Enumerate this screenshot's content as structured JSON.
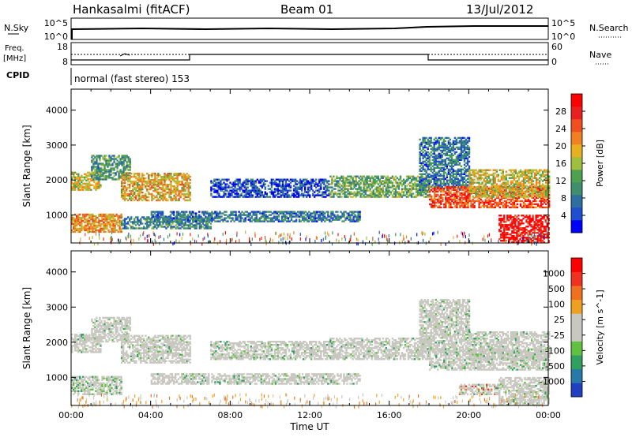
{
  "header": {
    "station": "Hankasalmi (fitACF)",
    "beam": "Beam 01",
    "date": "13/Jul/2012"
  },
  "top_panels": {
    "nsky_label": "N.Sky",
    "nsky_ticks": [
      "10^5",
      "10^0"
    ],
    "nsearch_label": "N.Search",
    "nsearch_ticks": [
      "10^5",
      "10^0"
    ],
    "freq_label": "Freq.",
    "freq_unit": "[MHz]",
    "freq_ticks": [
      "18",
      "8"
    ],
    "nave_label": "Nave",
    "nave_ticks": [
      "60",
      "0"
    ],
    "cpid_label": "CPID",
    "cpid_text": "normal (fast stereo) 153"
  },
  "chart_data": [
    {
      "type": "heatmap",
      "name": "power",
      "ylabel": "Slant Range [km]",
      "xlabel": "",
      "yticks": [
        1000,
        2000,
        3000,
        4000
      ],
      "ylim": [
        200,
        4600
      ],
      "xlim": [
        0,
        24
      ],
      "colorbar": {
        "label": "Power [dB]",
        "ticks": [
          "28",
          "24",
          "20",
          "16",
          "12",
          "8",
          "4"
        ],
        "colors": [
          "#0000ff",
          "#1f4fcf",
          "#2f6f9f",
          "#3f8f6f",
          "#4fa04f",
          "#9fbf3f",
          "#e8b020",
          "#f08020",
          "#f05020",
          "#e82020",
          "#ff0000"
        ]
      },
      "regions": [
        {
          "t0": 0.0,
          "t1": 1.5,
          "r0": 1700,
          "r1": 2200,
          "level": 0.55
        },
        {
          "t0": 1.0,
          "t1": 3.0,
          "r0": 2000,
          "r1": 2700,
          "level": 0.35
        },
        {
          "t0": 2.5,
          "t1": 6.0,
          "r0": 1400,
          "r1": 2200,
          "level": 0.6
        },
        {
          "t0": 0.0,
          "t1": 2.5,
          "r0": 500,
          "r1": 1000,
          "level": 0.65
        },
        {
          "t0": 2.5,
          "t1": 7.0,
          "r0": 600,
          "r1": 950,
          "level": 0.3
        },
        {
          "t0": 4.0,
          "t1": 14.5,
          "r0": 800,
          "r1": 1100,
          "level": 0.25
        },
        {
          "t0": 7.0,
          "t1": 13.0,
          "r0": 1500,
          "r1": 2000,
          "level": 0.15
        },
        {
          "t0": 13.0,
          "t1": 18.0,
          "r0": 1500,
          "r1": 2100,
          "level": 0.4
        },
        {
          "t0": 17.5,
          "t1": 20.0,
          "r0": 1700,
          "r1": 3200,
          "level": 0.25
        },
        {
          "t0": 18.0,
          "t1": 24.0,
          "r0": 1200,
          "r1": 1800,
          "level": 0.8
        },
        {
          "t0": 20.0,
          "t1": 24.0,
          "r0": 1500,
          "r1": 2300,
          "level": 0.55
        },
        {
          "t0": 21.5,
          "t1": 24.0,
          "r0": 200,
          "r1": 1000,
          "level": 0.95
        }
      ]
    },
    {
      "type": "heatmap",
      "name": "velocity",
      "ylabel": "Slant Range [km]",
      "xlabel": "Time UT",
      "xticks": [
        "00:00",
        "04:00",
        "08:00",
        "12:00",
        "16:00",
        "20:00",
        "00:00"
      ],
      "yticks": [
        1000,
        2000,
        3000,
        4000
      ],
      "ylim": [
        200,
        4600
      ],
      "xlim": [
        0,
        24
      ],
      "colorbar": {
        "label": "Velocity [m s^-1]",
        "ticks": [
          "1000",
          "500",
          "100",
          "25",
          "-25",
          "-100",
          "-500",
          "-1000"
        ],
        "colors": [
          "#2040c0",
          "#2878a8",
          "#30a060",
          "#60c040",
          "#c8c8c0",
          "#c8c8c0",
          "#f0a020",
          "#f07020",
          "#f03020",
          "#ff0000"
        ]
      },
      "regions": [
        {
          "t0": 0.0,
          "t1": 1.5,
          "r0": 1700,
          "r1": 2200,
          "level": 0.5
        },
        {
          "t0": 1.0,
          "t1": 3.0,
          "r0": 2000,
          "r1": 2700,
          "level": 0.5
        },
        {
          "t0": 2.5,
          "t1": 6.0,
          "r0": 1400,
          "r1": 2200,
          "level": 0.5
        },
        {
          "t0": 0.0,
          "t1": 2.5,
          "r0": 500,
          "r1": 1000,
          "level": 0.3
        },
        {
          "t0": 4.0,
          "t1": 14.5,
          "r0": 800,
          "r1": 1100,
          "level": 0.5
        },
        {
          "t0": 7.0,
          "t1": 13.0,
          "r0": 1500,
          "r1": 2000,
          "level": 0.5
        },
        {
          "t0": 13.0,
          "t1": 18.0,
          "r0": 1500,
          "r1": 2100,
          "level": 0.5
        },
        {
          "t0": 17.5,
          "t1": 20.0,
          "r0": 1700,
          "r1": 3200,
          "level": 0.5
        },
        {
          "t0": 18.0,
          "t1": 24.0,
          "r0": 1200,
          "r1": 1800,
          "level": 0.5
        },
        {
          "t0": 20.0,
          "t1": 24.0,
          "r0": 1500,
          "r1": 2300,
          "level": 0.5
        },
        {
          "t0": 19.5,
          "t1": 21.5,
          "r0": 500,
          "r1": 800,
          "level": 0.8
        },
        {
          "t0": 21.5,
          "t1": 24.0,
          "r0": 200,
          "r1": 1000,
          "level": 0.5
        }
      ]
    }
  ]
}
